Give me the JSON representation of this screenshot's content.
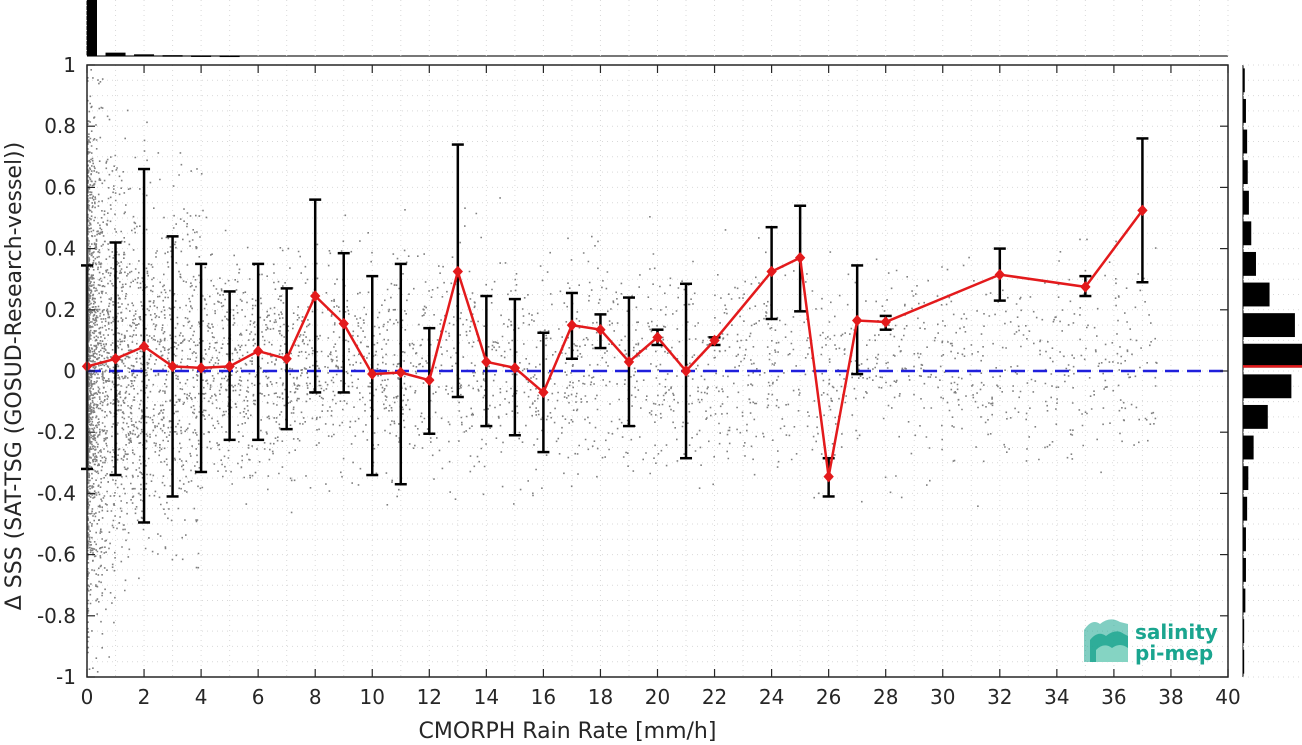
{
  "chart_data": {
    "type": "line",
    "xlabel": "CMORPH Rain Rate [mm/h]",
    "ylabel": "Δ SSS (SAT-TSG (GOSUD-Research-vessel))",
    "xlim": [
      0,
      40
    ],
    "ylim": [
      -1,
      1
    ],
    "xticks": [
      "0",
      "2",
      "4",
      "6",
      "8",
      "10",
      "12",
      "14",
      "16",
      "18",
      "20",
      "22",
      "24",
      "26",
      "28",
      "30",
      "32",
      "34",
      "36",
      "38",
      "40"
    ],
    "yticks": [
      "-1",
      "-0.8",
      "-0.6",
      "-0.4",
      "-0.2",
      "0",
      "0.2",
      "0.4",
      "0.6",
      "0.8",
      "1"
    ],
    "grid": true,
    "zero_line": {
      "y": 0,
      "style": "dashed",
      "color": "#1f1fdc"
    },
    "series": [
      {
        "color": "#e31a1c",
        "x": [
          0,
          1,
          2,
          3,
          4,
          5,
          6,
          7,
          8,
          9,
          10,
          11,
          12,
          13,
          14,
          15,
          16,
          17,
          18,
          19,
          20,
          21,
          22,
          24,
          25,
          26,
          27,
          28,
          32,
          35,
          37
        ],
        "y": [
          0.015,
          0.04,
          0.08,
          0.015,
          0.01,
          0.015,
          0.065,
          0.04,
          0.245,
          0.155,
          -0.01,
          -0.005,
          -0.03,
          0.325,
          0.03,
          0.01,
          -0.07,
          0.15,
          0.135,
          0.03,
          0.11,
          0.0,
          0.1,
          0.325,
          0.37,
          -0.345,
          0.165,
          0.16,
          0.315,
          0.275,
          0.525
        ],
        "err_low": [
          -0.32,
          -0.34,
          -0.495,
          -0.41,
          -0.33,
          -0.225,
          -0.225,
          -0.19,
          -0.07,
          -0.07,
          -0.34,
          -0.37,
          -0.205,
          -0.085,
          -0.18,
          -0.21,
          -0.265,
          0.04,
          0.075,
          -0.18,
          0.085,
          -0.285,
          0.085,
          0.17,
          0.195,
          -0.41,
          -0.01,
          0.135,
          0.23,
          0.245,
          0.29
        ],
        "err_high": [
          0.345,
          0.42,
          0.66,
          0.44,
          0.35,
          0.26,
          0.35,
          0.27,
          0.56,
          0.385,
          0.31,
          0.35,
          0.14,
          0.74,
          0.245,
          0.235,
          0.125,
          0.255,
          0.185,
          0.24,
          0.135,
          0.285,
          0.11,
          0.47,
          0.54,
          -0.285,
          0.345,
          0.18,
          0.4,
          0.31,
          0.76
        ]
      }
    ],
    "scatter_color": "#808080",
    "top_histogram": {
      "x_bins": [
        0.25,
        1,
        2,
        3,
        4,
        5
      ],
      "rel_heights": [
        1.0,
        0.06,
        0.03,
        0.015,
        0.01,
        0.008
      ]
    },
    "right_histogram": {
      "y_bins": [
        0.95,
        0.85,
        0.75,
        0.65,
        0.55,
        0.45,
        0.35,
        0.25,
        0.15,
        0.05,
        -0.05,
        -0.15,
        -0.25,
        -0.35,
        -0.45,
        -0.55,
        -0.65,
        -0.75,
        -0.85,
        -0.95
      ],
      "rel_widths": [
        0.03,
        0.05,
        0.07,
        0.08,
        0.1,
        0.14,
        0.22,
        0.45,
        0.88,
        1.0,
        0.82,
        0.42,
        0.18,
        0.09,
        0.07,
        0.05,
        0.05,
        0.04,
        0.02,
        0.02
      ],
      "mean_line": 0.015
    }
  },
  "logo": {
    "line1": "salinity",
    "line2": "pi-mep",
    "color": "#1aa58f"
  }
}
